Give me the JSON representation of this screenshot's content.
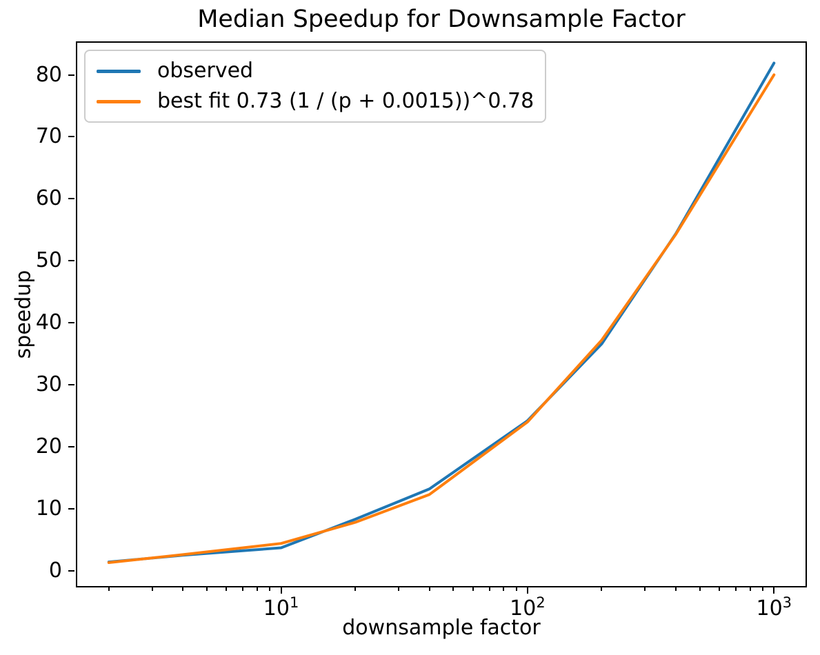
{
  "chart_data": {
    "type": "line",
    "title": "Median Speedup for Downsample Factor",
    "xlabel": "downsample factor",
    "ylabel": "speedup",
    "x_scale": "log",
    "grid": false,
    "legend_position": "upper-left",
    "x": [
      2,
      4,
      10,
      20,
      40,
      100,
      200,
      400,
      1000
    ],
    "series": [
      {
        "name": "observed",
        "color": "#1f77b4",
        "values": [
          1.4,
          2.5,
          3.7,
          8.3,
          13.2,
          24.2,
          36.6,
          54.4,
          81.9
        ]
      },
      {
        "name": "best fit 0.73 (1 / (p + 0.0015))^0.78",
        "color": "#ff7f0e",
        "values": [
          1.3,
          2.6,
          4.4,
          7.8,
          12.3,
          24.0,
          37.2,
          54.3,
          80.0
        ]
      }
    ],
    "xlim": [
      1.47,
      1360
    ],
    "ylim": [
      -2.7,
      85.4
    ],
    "x_ticks": [
      {
        "value": 10,
        "base": "10",
        "exp": "1"
      },
      {
        "value": 100,
        "base": "10",
        "exp": "2"
      },
      {
        "value": 1000,
        "base": "10",
        "exp": "3"
      }
    ],
    "x_minor_ticks": [
      2,
      3,
      4,
      5,
      6,
      7,
      8,
      9,
      20,
      30,
      40,
      50,
      60,
      70,
      80,
      90,
      200,
      300,
      400,
      500,
      600,
      700,
      800,
      900
    ],
    "y_ticks": [
      {
        "value": 0,
        "label": "0"
      },
      {
        "value": 10,
        "label": "10"
      },
      {
        "value": 20,
        "label": "20"
      },
      {
        "value": 30,
        "label": "30"
      },
      {
        "value": 40,
        "label": "40"
      },
      {
        "value": 50,
        "label": "50"
      },
      {
        "value": 60,
        "label": "60"
      },
      {
        "value": 70,
        "label": "70"
      },
      {
        "value": 80,
        "label": "80"
      }
    ],
    "axis_color": "#000000",
    "legend_border_color": "#cccccc"
  }
}
